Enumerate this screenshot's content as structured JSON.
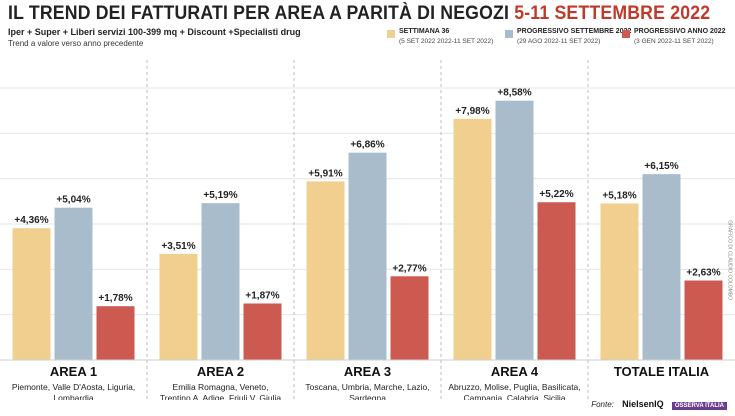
{
  "header": {
    "title_main": "IL TREND DEI FATTURATI PER AREA A PARITÀ DI NEGOZI",
    "title_dates": "5-11 SETTEMBRE 2022",
    "subtitle": "Iper + Super + Liberi servizi 100-399 mq + Discount +Specialisti drug",
    "note": "Trend a valore verso anno precedente"
  },
  "legend": [
    {
      "label": "SETTIMANA 36",
      "range": "(5 SET 2022 2022-11 SET 2022)",
      "color": "#f0cf8f"
    },
    {
      "label": "PROGRESSIVO SETTEMBRE 2022",
      "range": "(29 AGO 2022-11 SET 2022)",
      "color": "#a8bccb"
    },
    {
      "label": "PROGRESSIVO ANNO 2022",
      "range": "(3 GEN 2022-11 SET 2022)",
      "color": "#cd5a50"
    }
  ],
  "source": {
    "label": "Fonte:",
    "logo1": "NielsenIQ",
    "logo2": "OSSERVA ITALIA"
  },
  "credit": "GRAFICO DI CLAUDIO COLOMBO",
  "chart_data": {
    "type": "bar",
    "categories": [
      "AREA 1",
      "AREA 2",
      "AREA 3",
      "AREA 4",
      "TOTALE ITALIA"
    ],
    "category_regions": [
      [
        "Piemonte, Valle D'Aosta, Liguria,",
        "Lombardia"
      ],
      [
        "Emilia Romagna, Veneto,",
        "Trentino A. Adige, Friuli V. Giulia"
      ],
      [
        "Toscana, Umbria, Marche, Lazio,",
        "Sardegna"
      ],
      [
        "Abruzzo, Molise, Puglia, Basilicata,",
        "Campania, Calabria, Sicilia"
      ],
      []
    ],
    "series": [
      {
        "name": "SETTIMANA 36",
        "color": "#f0cf8f",
        "values": [
          4.36,
          3.51,
          5.91,
          7.98,
          5.18
        ],
        "labels": [
          "+4,36%",
          "+3,51%",
          "+5,91%",
          "+7,98%",
          "+5,18%"
        ]
      },
      {
        "name": "PROGRESSIVO SETTEMBRE 2022",
        "color": "#a8bccb",
        "values": [
          5.04,
          5.19,
          6.86,
          8.58,
          6.15
        ],
        "labels": [
          "+5,04%",
          "+5,19%",
          "+6,86%",
          "+8,58%",
          "+6,15%"
        ]
      },
      {
        "name": "PROGRESSIVO ANNO 2022",
        "color": "#cd5a50",
        "values": [
          1.78,
          1.87,
          2.77,
          5.22,
          2.63
        ],
        "labels": [
          "+1,78%",
          "+1,87%",
          "+2,77%",
          "+5,22%",
          "+2,63%"
        ]
      }
    ],
    "ylim": [
      0,
      9
    ],
    "grid": true
  }
}
